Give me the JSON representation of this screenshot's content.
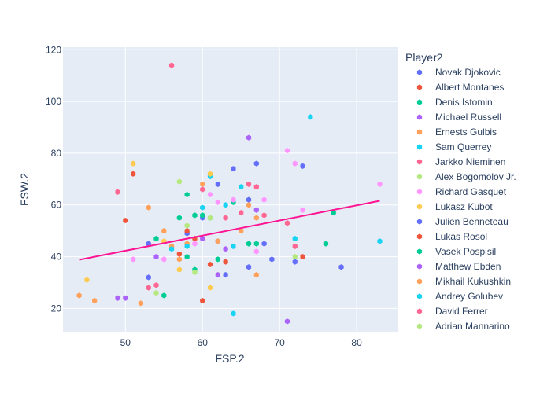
{
  "chart_data": {
    "type": "scatter",
    "xlabel": "FSP.2",
    "ylabel": "FSW.2",
    "xlim": [
      41.9,
      85.3
    ],
    "ylim": [
      11,
      121
    ],
    "xticks": [
      50,
      60,
      70,
      80
    ],
    "yticks": [
      20,
      40,
      60,
      80,
      100,
      120
    ],
    "grid": true,
    "plot_bgcolor": "#E5ECF6",
    "legend_title": "Player2",
    "legend_position": "right",
    "trendline": {
      "x": [
        44,
        83
      ],
      "y": [
        38.8,
        61.6
      ],
      "color": "#FF1493"
    },
    "series": [
      {
        "name": "Novak Djokovic",
        "color": "#636EFA",
        "points": [
          [
            53,
            45
          ],
          [
            58,
            49
          ],
          [
            60,
            55
          ],
          [
            62,
            68
          ],
          [
            62,
            46
          ],
          [
            63,
            33
          ],
          [
            64,
            74
          ],
          [
            66,
            62
          ],
          [
            66,
            36
          ],
          [
            67,
            76
          ],
          [
            68,
            45
          ],
          [
            69,
            39
          ],
          [
            72,
            38
          ],
          [
            73,
            75
          ],
          [
            78,
            36
          ],
          [
            53,
            32
          ]
        ]
      },
      {
        "name": "Albert Montanes",
        "color": "#EF553B",
        "points": [
          [
            50,
            54
          ],
          [
            51,
            72
          ],
          [
            57,
            41
          ],
          [
            58,
            50
          ],
          [
            59,
            47
          ],
          [
            60,
            23
          ],
          [
            61,
            37
          ],
          [
            63,
            38
          ],
          [
            73,
            40
          ]
        ]
      },
      {
        "name": "Denis Istomin",
        "color": "#00CC96",
        "points": [
          [
            54,
            47
          ],
          [
            55,
            25
          ],
          [
            57,
            55
          ],
          [
            58,
            64
          ],
          [
            58,
            40
          ],
          [
            59,
            56
          ],
          [
            59,
            35
          ],
          [
            60,
            56
          ],
          [
            61,
            55
          ],
          [
            62,
            39
          ],
          [
            64,
            61
          ],
          [
            66,
            45
          ],
          [
            67,
            45
          ],
          [
            76,
            45
          ],
          [
            77,
            57
          ]
        ]
      },
      {
        "name": "Michael Russell",
        "color": "#AB63FA",
        "points": [
          [
            49,
            24
          ],
          [
            50,
            24
          ],
          [
            54,
            40
          ],
          [
            60,
            47
          ],
          [
            62,
            33
          ],
          [
            63,
            43
          ],
          [
            66,
            86
          ],
          [
            67,
            58
          ],
          [
            71,
            15
          ]
        ]
      },
      {
        "name": "Ernests Gulbis",
        "color": "#FFA15A",
        "points": [
          [
            44,
            25
          ],
          [
            46,
            23
          ],
          [
            52,
            22
          ],
          [
            53,
            59
          ],
          [
            55,
            50
          ],
          [
            56,
            44
          ],
          [
            57,
            39
          ],
          [
            58,
            45
          ],
          [
            60,
            68
          ],
          [
            62,
            46
          ],
          [
            65,
            50
          ],
          [
            66,
            60
          ],
          [
            67,
            55
          ],
          [
            67,
            33
          ]
        ]
      },
      {
        "name": "Sam Querrey",
        "color": "#19D3F3",
        "points": [
          [
            56,
            43
          ],
          [
            58,
            44
          ],
          [
            60,
            59
          ],
          [
            61,
            71
          ],
          [
            63,
            60
          ],
          [
            64,
            44
          ],
          [
            64,
            18
          ],
          [
            65,
            67
          ],
          [
            72,
            47
          ],
          [
            74,
            94
          ],
          [
            83,
            46
          ]
        ]
      },
      {
        "name": "Jarkko Nieminen",
        "color": "#FF6692",
        "points": [
          [
            49,
            65
          ],
          [
            53,
            28
          ],
          [
            54,
            29
          ],
          [
            56,
            114
          ],
          [
            60,
            66
          ],
          [
            63,
            55
          ],
          [
            65,
            57
          ],
          [
            66,
            68
          ],
          [
            67,
            67
          ],
          [
            68,
            56
          ],
          [
            71,
            53
          ],
          [
            72,
            44
          ]
        ]
      },
      {
        "name": "Alex Bogomolov Jr.",
        "color": "#B6E880",
        "points": [
          [
            54,
            26
          ],
          [
            57,
            69
          ],
          [
            58,
            52
          ],
          [
            59,
            34
          ],
          [
            61,
            55
          ],
          [
            72,
            40
          ]
        ]
      },
      {
        "name": "Richard Gasquet",
        "color": "#FF97FF",
        "points": [
          [
            51,
            39
          ],
          [
            55,
            39
          ],
          [
            59,
            45
          ],
          [
            61,
            64
          ],
          [
            62,
            61
          ],
          [
            64,
            62
          ],
          [
            67,
            42
          ],
          [
            68,
            62
          ],
          [
            71,
            81
          ],
          [
            72,
            76
          ],
          [
            73,
            58
          ],
          [
            83,
            68
          ]
        ]
      },
      {
        "name": "Lukasz Kubot",
        "color": "#FECB52",
        "points": [
          [
            45,
            31
          ],
          [
            51,
            76
          ],
          [
            55,
            46
          ],
          [
            57,
            35
          ],
          [
            61,
            72
          ],
          [
            61,
            28
          ]
        ]
      }
    ],
    "legend_only": [
      {
        "name": "Julien Benneteau",
        "color": "#636EFA"
      },
      {
        "name": "Lukas Rosol",
        "color": "#EF553B"
      },
      {
        "name": "Vasek Pospisil",
        "color": "#00CC96"
      },
      {
        "name": "Matthew Ebden",
        "color": "#AB63FA"
      },
      {
        "name": "Mikhail Kukushkin",
        "color": "#FFA15A"
      },
      {
        "name": "Andrey Golubev",
        "color": "#19D3F3"
      },
      {
        "name": "David Ferrer",
        "color": "#FF6692"
      },
      {
        "name": "Adrian Mannarino",
        "color": "#B6E880"
      }
    ]
  }
}
